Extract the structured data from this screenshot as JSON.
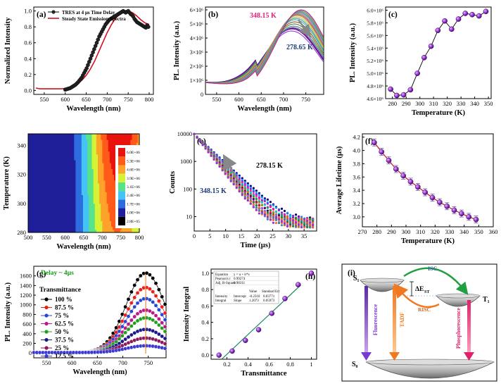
{
  "chart_data": [
    {
      "id": "a",
      "type": "line",
      "panel_label": "(a)",
      "xlabel": "Wavelength (nm)",
      "ylabel": "Normalized Intensity",
      "xlim": [
        525,
        810
      ],
      "ylim": [
        -0.05,
        1.05
      ],
      "xticks": [
        550,
        600,
        650,
        700,
        750,
        800
      ],
      "yticks": [
        0.0,
        0.2,
        0.4,
        0.6,
        0.8,
        1.0
      ],
      "legend": [
        "TRES at 4 µs Time Delay",
        "Steady State Emission Spectra"
      ],
      "series": [
        {
          "name": "TRES at 4 µs Time Delay",
          "marker": "circle",
          "x": [
            600,
            603,
            606,
            609,
            612,
            615,
            618,
            621,
            624,
            627,
            630,
            633,
            636,
            639,
            642,
            645,
            648,
            651,
            654,
            657,
            660,
            663,
            666,
            669,
            672,
            675,
            678,
            681,
            684,
            687,
            690,
            693,
            696,
            699,
            702,
            705,
            708,
            711,
            714,
            717,
            720,
            723,
            726,
            729,
            732,
            735,
            738,
            741,
            744,
            747,
            750,
            753,
            756,
            759,
            762,
            765,
            768,
            771,
            774,
            777,
            780,
            783,
            786,
            789,
            792,
            795,
            798
          ],
          "values": [
            0.01,
            0.015,
            0.02,
            0.025,
            0.03,
            0.04,
            0.05,
            0.06,
            0.07,
            0.085,
            0.1,
            0.12,
            0.14,
            0.16,
            0.19,
            0.22,
            0.25,
            0.28,
            0.32,
            0.36,
            0.4,
            0.44,
            0.48,
            0.52,
            0.56,
            0.6,
            0.64,
            0.68,
            0.71,
            0.74,
            0.77,
            0.8,
            0.83,
            0.85,
            0.87,
            0.89,
            0.9,
            0.91,
            0.92,
            0.93,
            0.94,
            0.95,
            0.96,
            0.97,
            0.98,
            0.99,
            1.0,
            0.99,
            0.98,
            0.99,
            1.0,
            0.98,
            0.96,
            0.95,
            0.93,
            0.9,
            0.88,
            0.86,
            0.85,
            0.84,
            0.83,
            0.82,
            0.81,
            0.8,
            0.79,
            0.82,
            0.8
          ]
        },
        {
          "name": "Steady State Emission Spectra",
          "marker": "none",
          "x": [
            530,
            540,
            550,
            560,
            570,
            580,
            590,
            600,
            610,
            620,
            630,
            640,
            650,
            660,
            670,
            680,
            690,
            700,
            710,
            720,
            730,
            740,
            750,
            760,
            770,
            780,
            790,
            800
          ],
          "values": [
            0.03,
            0.02,
            0.02,
            0.02,
            0.02,
            0.02,
            0.02,
            0.025,
            0.035,
            0.055,
            0.085,
            0.13,
            0.19,
            0.27,
            0.37,
            0.49,
            0.61,
            0.73,
            0.83,
            0.91,
            0.96,
            0.99,
            1.0,
            0.98,
            0.94,
            0.89,
            0.85,
            0.83
          ]
        }
      ]
    },
    {
      "id": "b",
      "type": "line",
      "panel_label": "(b)",
      "xlabel": "Wavelength (nm)",
      "ylabel": "PL. Intensity (a.u.)",
      "xlim": [
        525,
        790
      ],
      "ylim": [
        0,
        6200000
      ],
      "xticks": [
        550,
        600,
        650,
        700,
        750
      ],
      "ytick_labels": [
        "0",
        "1×10⁶",
        "2×10⁶",
        "3×10⁶",
        "4×10⁶",
        "5×10⁶",
        "6×10⁶"
      ],
      "yticks": [
        0,
        1000000,
        2000000,
        3000000,
        4000000,
        5000000,
        6000000
      ],
      "annotations": [
        {
          "text": "348.15 K",
          "color": "#e0207a"
        },
        {
          "text": "278.65 K",
          "color": "#1a3a7a"
        }
      ],
      "series_peaks": [
        4500000,
        4650000,
        4700000,
        4750000,
        4850000,
        5000000,
        5150000,
        5300000,
        5400000,
        5500000,
        5600000,
        5650000,
        5700000,
        5750000,
        5800000,
        5850000,
        5900000,
        5950000,
        6000000
      ],
      "series_colors": [
        "#8a2be2",
        "#4b0082",
        "#800080",
        "#6a5acd",
        "#2e8b57",
        "#556b2f",
        "#8b4513",
        "#20b2aa",
        "#4682b4",
        "#9acd32",
        "#daa520",
        "#cd5c5c",
        "#708090",
        "#ff69b4",
        "#3cb371",
        "#1e90ff",
        "#b8860b",
        "#5f9ea0",
        "#c71585"
      ]
    },
    {
      "id": "c",
      "type": "line",
      "panel_label": "(c)",
      "xlabel": "Temperature (K)",
      "ylabel": "PL. Intensity (a.u.)",
      "xlim": [
        275,
        352
      ],
      "ylim": [
        4600000,
        6050000
      ],
      "xticks": [
        280,
        290,
        300,
        310,
        320,
        330,
        340,
        350
      ],
      "yticks": [
        4600000,
        4800000,
        5000000,
        5200000,
        5400000,
        5600000,
        5800000,
        6000000
      ],
      "ytick_labels": [
        "4.6×10⁶",
        "4.8×10⁶",
        "5.0×10⁶",
        "5.2×10⁶",
        "5.4×10⁶",
        "5.6×10⁶",
        "5.8×10⁶",
        "6.0×10⁶"
      ],
      "x": [
        278.65,
        283.15,
        288.15,
        293.15,
        298.15,
        303.15,
        308.15,
        313.15,
        318.15,
        323.15,
        328.15,
        333.15,
        338.15,
        343.15,
        348.15
      ],
      "values": [
        4750000,
        4650000,
        4660000,
        4740000,
        5000000,
        5250000,
        5430000,
        5680000,
        5830000,
        5700000,
        5860000,
        5950000,
        5930000,
        5910000,
        5980000
      ]
    },
    {
      "id": "d",
      "type": "heatmap",
      "panel_label": "(d)",
      "xlabel": "Wavelength (nm)",
      "ylabel": "Temperature (K)",
      "xlim": [
        500,
        800
      ],
      "ylim": [
        280,
        348
      ],
      "xticks": [
        500,
        550,
        600,
        650,
        700,
        750,
        800
      ],
      "yticks": [
        280,
        300,
        320,
        340
      ],
      "colorbar_labels": [
        "2.8E+05",
        "1.0E+06",
        "1.7E+06",
        "2.4E+06",
        "3.1E+06",
        "3.9E+06",
        "4.6E+06",
        "5.3E+06",
        "6.0E+06"
      ],
      "colorbar_colors": [
        "#000000",
        "#1f1f9a",
        "#2c6ce0",
        "#44c4f4",
        "#56e38a",
        "#d6f235",
        "#ffa22a",
        "#ff5a1a",
        "#e8120f"
      ]
    },
    {
      "id": "e",
      "type": "scatter",
      "panel_label": "(e)",
      "xlabel": "Time (µs)",
      "ylabel": "Counts",
      "yscale": "log",
      "xlim": [
        0,
        39
      ],
      "ylim": [
        3,
        10000
      ],
      "xticks": [
        0,
        5,
        10,
        15,
        20,
        25,
        30,
        35
      ],
      "yticks": [
        10,
        100,
        1000,
        10000
      ],
      "annotations": [
        {
          "text": "278.15 K",
          "color": "#000000"
        },
        {
          "text": "348.15 K",
          "color": "#1a3a7a"
        }
      ],
      "lifetimes_us": [
        4.12,
        3.98,
        3.85,
        3.72,
        3.62,
        3.53,
        3.45,
        3.37,
        3.29,
        3.22,
        3.16,
        3.1,
        3.05,
        3.0,
        2.96
      ],
      "series_colors": [
        "#000080",
        "#1e90ff",
        "#8a2be2",
        "#ff1493",
        "#00ced1",
        "#2e8b57",
        "#b8860b",
        "#4b0082",
        "#dc143c",
        "#7b68ee",
        "#228b22",
        "#d2691e",
        "#ff6347",
        "#4682b4",
        "#9932cc"
      ]
    },
    {
      "id": "f",
      "type": "line",
      "panel_label": "(f)",
      "xlabel": "Temperature (K)",
      "ylabel": "Average Lifetime (µs)",
      "xlim": [
        270,
        360
      ],
      "ylim": [
        2.85,
        4.25
      ],
      "xticks": [
        270,
        280,
        290,
        300,
        310,
        320,
        330,
        340,
        350,
        360
      ],
      "yticks": [
        3.0,
        3.2,
        3.4,
        3.6,
        3.8,
        4.0,
        4.2
      ],
      "x": [
        278.15,
        283.15,
        288.15,
        293.15,
        298.15,
        303.15,
        308.15,
        313.15,
        318.15,
        323.15,
        328.15,
        333.15,
        338.15,
        343.15,
        348.15
      ],
      "values": [
        4.12,
        3.98,
        3.85,
        3.72,
        3.62,
        3.53,
        3.45,
        3.37,
        3.29,
        3.22,
        3.16,
        3.1,
        3.05,
        3.0,
        2.96
      ]
    },
    {
      "id": "g",
      "type": "line",
      "panel_label": "(g)",
      "xlabel": "Wavelength (nm)",
      "ylabel": "PL. Intensity (a.u.)",
      "xlim": [
        525,
        785
      ],
      "ylim": [
        -100,
        1800
      ],
      "xticks": [
        550,
        600,
        650,
        700,
        750
      ],
      "yticks": [
        0,
        200,
        400,
        600,
        800,
        1000,
        1200,
        1400,
        1600
      ],
      "title": "Delay ~ 4µs",
      "title_color": "#1a9a1a",
      "legend_title": "Transmittance",
      "legend": [
        "100 %",
        "87.5 %",
        "75 %",
        "62.5 %",
        "50 %",
        "37.5 %",
        "25 %",
        "12.5 %"
      ],
      "series_colors": [
        "#000000",
        "#e8201a",
        "#2846d6",
        "#c0168c",
        "#20a020",
        "#1a1a8a",
        "#8a1a5a",
        "#3a3ad0"
      ],
      "series_peaks": [
        1650,
        1350,
        1120,
        880,
        720,
        480,
        300,
        140
      ]
    },
    {
      "id": "h",
      "type": "scatter",
      "panel_label": "(h)",
      "xlabel": "Transmittance",
      "ylabel": "Intensity Integral",
      "xlim": [
        0.05,
        1.05
      ],
      "ylim": [
        -0.05,
        1.05
      ],
      "xticks": [
        0.2,
        0.4,
        0.6,
        0.8,
        1.0
      ],
      "yticks": [
        0.0,
        0.2,
        0.4,
        0.6,
        0.8,
        1.0
      ],
      "x": [
        0.125,
        0.25,
        0.375,
        0.5,
        0.625,
        0.75,
        0.875,
        1.0
      ],
      "values": [
        0.0,
        0.05,
        0.18,
        0.31,
        0.51,
        0.69,
        0.86,
        1.0
      ],
      "fit": {
        "intercept": -0.231,
        "slope": 1.2073
      },
      "stats_table": {
        "equation_label": "Equation",
        "equation": "y = a + b*x",
        "pearson_label": "Pearson's r",
        "pearson": "0.99274",
        "adj_label": "Adj. R-Square",
        "adj": "0.98311",
        "col_value": "Value",
        "col_err": "Standard Err",
        "row1_name": "Intensity",
        "row1_param": "Intercept",
        "row1_value": "-0.2310",
        "row1_err": "0.03771",
        "row2_name": "Integral",
        "row2_param": "Slope",
        "row2_value": "1.2073",
        "row2_err": "0.05973"
      }
    }
  ],
  "diagram_i": {
    "panel_label": "(i)",
    "s1": "S₁",
    "t1": "T₁",
    "s0": "S₀",
    "isc": "ISC",
    "risc": "RISC",
    "delta": "ΔE",
    "delta_sub": "ST",
    "fluorescence": "Fluorescence",
    "tadf": "TADF",
    "phosphorescence": "Phosphorescence",
    "colors": {
      "fluorescence": "#7a3ad0",
      "tadf": "#f07820",
      "phosphorescence": "#e0206a",
      "isc": "#20a040",
      "risc": "#f07820"
    }
  }
}
